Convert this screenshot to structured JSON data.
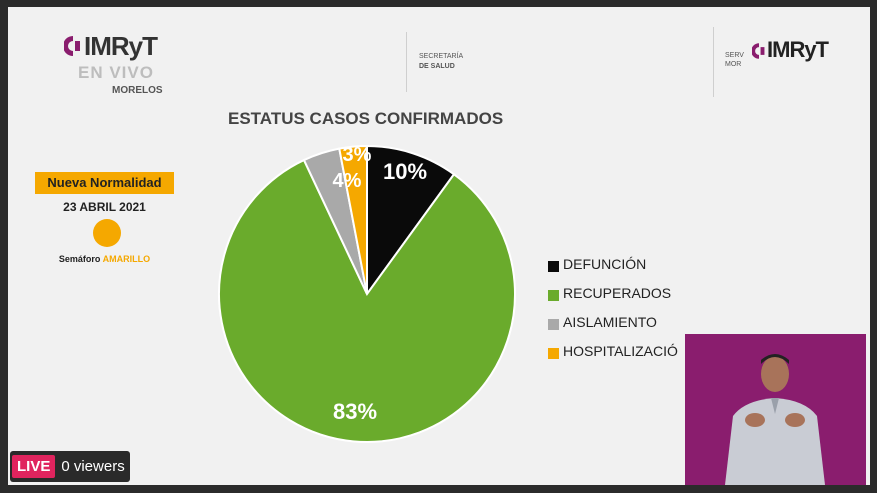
{
  "header": {
    "logo_left": {
      "brand": "IMRyT",
      "subtitle": "EN VIVO",
      "place": "MORELOS"
    },
    "secretaria": {
      "line1": "SECRETARÍA",
      "line2": "DE SALUD"
    },
    "logo_right": {
      "small": "SERV",
      "small2": "MOR",
      "brand": "IMRyT"
    }
  },
  "sidebar": {
    "badge": "Nueva Normalidad",
    "date": "23 ABRIL 2021",
    "semaforo_label": "Semáforo",
    "semaforo_value": "AMARILLO"
  },
  "chart_data": {
    "type": "pie",
    "title": "ESTATUS CASOS CONFIRMADOS",
    "labels": [
      "DEFUNCIÓN",
      "RECUPERADOS",
      "AISLAMIENTO",
      "HOSPITALIZACIÓ"
    ],
    "values": [
      10,
      83,
      4,
      3
    ],
    "value_labels": [
      "10%",
      "83%",
      "4%",
      "3%"
    ],
    "colors": [
      "#0a0a0a",
      "#6aab2c",
      "#a9a9a9",
      "#f5a800"
    ],
    "legend_position": "right"
  },
  "stream": {
    "live_label": "LIVE",
    "viewers": "0 viewers"
  }
}
